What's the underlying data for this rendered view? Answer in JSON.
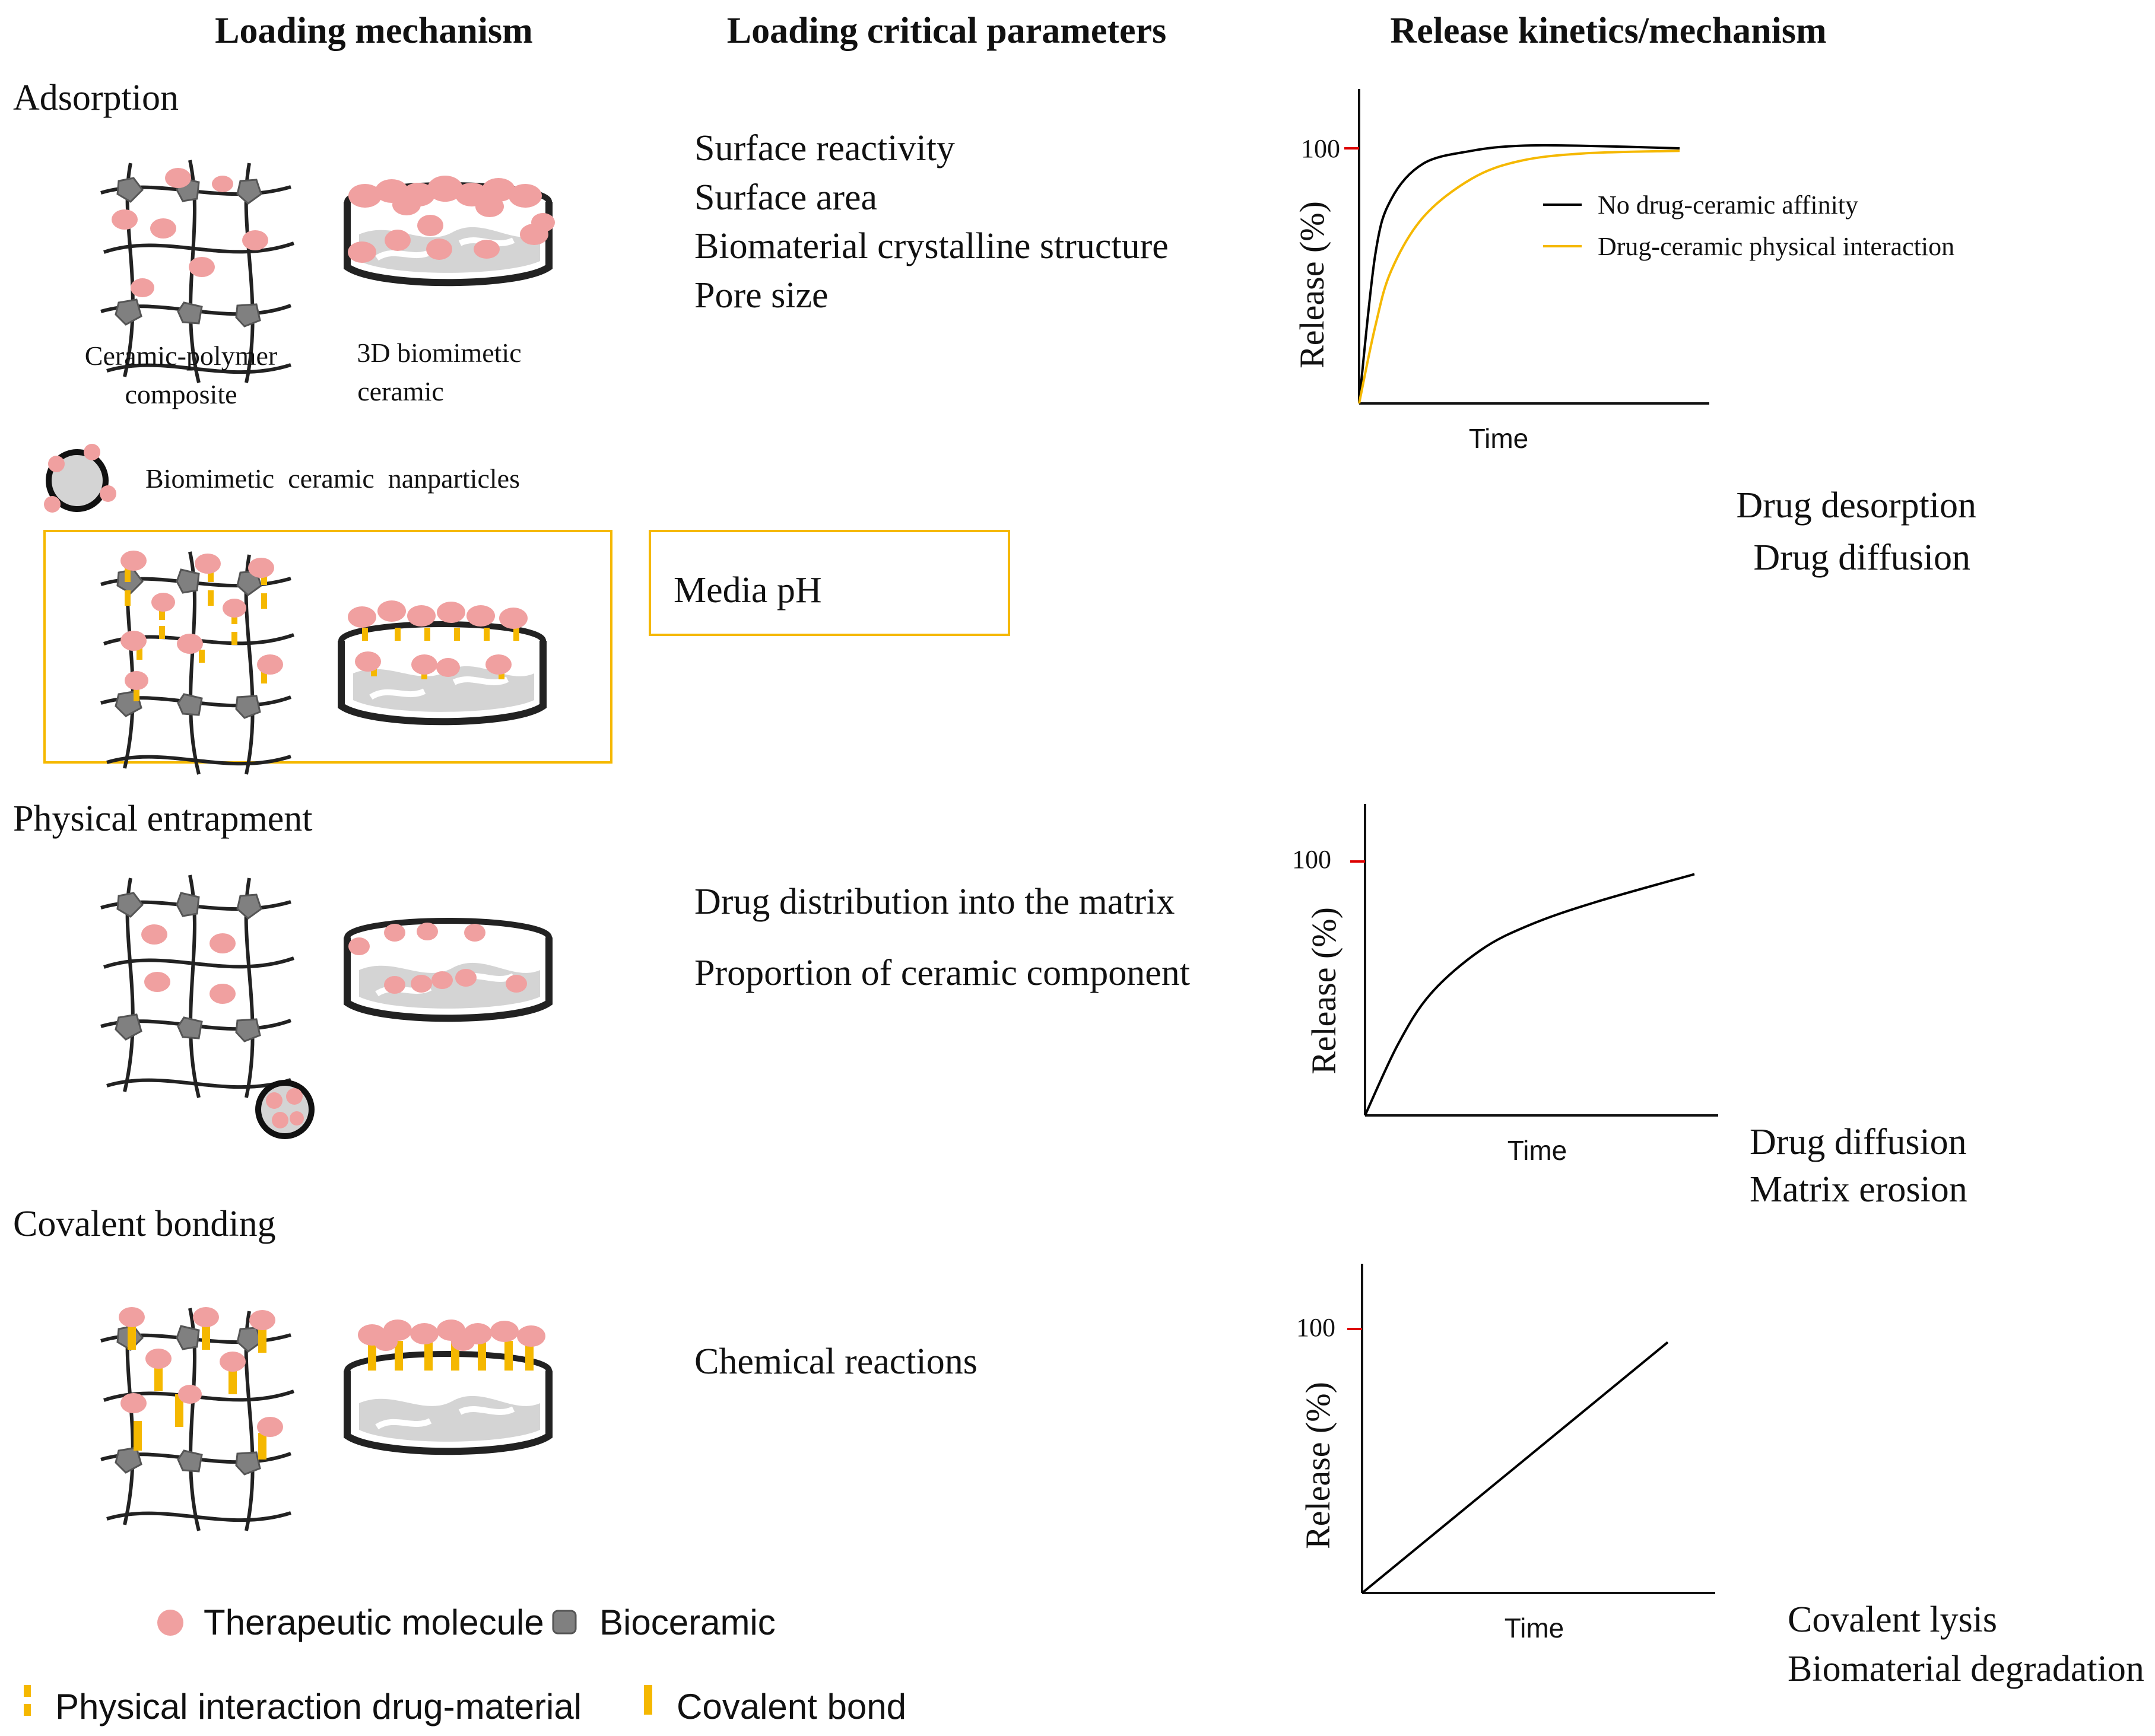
{
  "headers": {
    "mechanism": "Loading mechanism",
    "parameters": "Loading critical parameters",
    "release": "Release kinetics/mechanism"
  },
  "adsorption": {
    "title": "Adsorption",
    "caption_composite_1": "Ceramic-polymer",
    "caption_composite_2": "composite",
    "caption_ceramic_1": "3D biomimetic",
    "caption_ceramic_2": "ceramic",
    "caption_nanoparticles": "Biomimetic  ceramic  nanparticles",
    "parameters": [
      "Surface reactivity",
      "Surface area",
      "Biomaterial crystalline structure",
      "Pore size"
    ],
    "boxed_parameter": "Media pH",
    "release_mechanism": [
      "Drug desorption",
      "Drug diffusion"
    ]
  },
  "entrapment": {
    "title": "Physical entrapment",
    "parameters": [
      "Drug distribution into the matrix",
      "Proportion of ceramic component"
    ],
    "release_mechanism": [
      "Drug diffusion",
      "Matrix erosion"
    ]
  },
  "covalent": {
    "title": "Covalent bonding",
    "parameters": [
      "Chemical reactions"
    ],
    "release_mechanism": [
      "Covalent lysis",
      "Biomaterial degradation"
    ]
  },
  "legend": {
    "therapeutic": "Therapeutic molecule",
    "bioceramic": "Bioceramic",
    "physical": "Physical interaction drug-material",
    "covalent": "Covalent bond"
  },
  "colors": {
    "drug": "#f0a0a0",
    "bioceramic": "#808080",
    "physical_interaction": "#f5b800",
    "box_border": "#f5b800",
    "tick_100": "#dd0000",
    "curve_affinity": "#000000",
    "curve_physical": "#f5b800"
  },
  "chart_data": [
    {
      "type": "line",
      "xlabel": "Time",
      "ylabel": "Release (%)",
      "yticks": [
        100
      ],
      "series": [
        {
          "name": "No drug-ceramic affinity",
          "color": "#000000",
          "x": [
            0,
            0.05,
            0.1,
            0.2,
            0.35,
            0.5,
            0.7,
            1.0
          ],
          "y": [
            0,
            58,
            80,
            94,
            99,
            101,
            101,
            100
          ]
        },
        {
          "name": "Drug-ceramic physical interaction",
          "color": "#f5b800",
          "x": [
            0,
            0.05,
            0.1,
            0.2,
            0.35,
            0.5,
            0.7,
            1.0
          ],
          "y": [
            0,
            30,
            52,
            73,
            88,
            95,
            98,
            99
          ]
        }
      ]
    },
    {
      "type": "line",
      "xlabel": "Time",
      "ylabel": "Release (%)",
      "yticks": [
        100
      ],
      "series": [
        {
          "color": "#000000",
          "x": [
            0,
            0.1,
            0.2,
            0.35,
            0.5,
            0.7,
            1.0
          ],
          "y": [
            0,
            28,
            48,
            65,
            75,
            84,
            95
          ]
        }
      ]
    },
    {
      "type": "line",
      "xlabel": "Time",
      "ylabel": "Release (%)",
      "yticks": [
        100
      ],
      "series": [
        {
          "color": "#000000",
          "x": [
            0,
            1.0
          ],
          "y": [
            0,
            95
          ]
        }
      ]
    }
  ]
}
